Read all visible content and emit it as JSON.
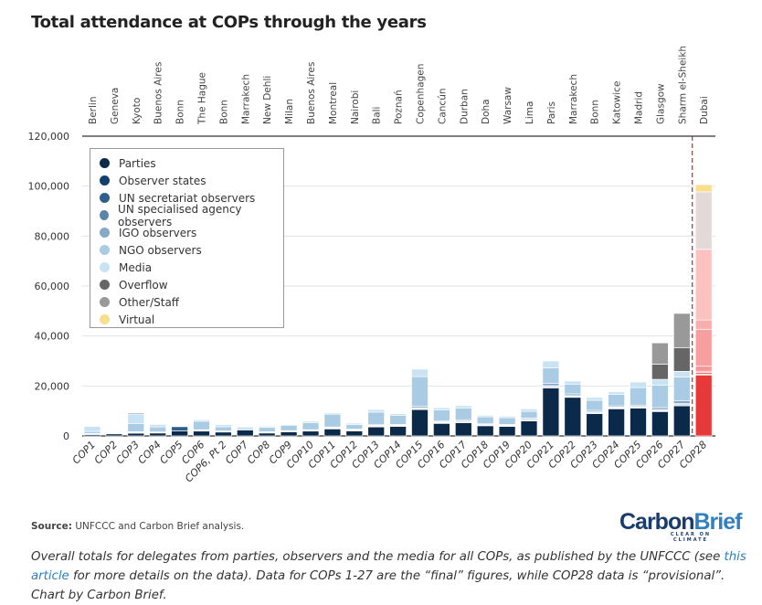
{
  "chart_data": {
    "type": "bar",
    "stacked": true,
    "title": "Total attendance at COPs through the years",
    "xlabel": "",
    "ylabel": "",
    "ylim": [
      0,
      120000
    ],
    "yticks": [
      0,
      20000,
      40000,
      60000,
      80000,
      100000,
      120000
    ],
    "ytick_labels": [
      "0",
      "20,000",
      "40,000",
      "60,000",
      "80,000",
      "100,000",
      "120,000"
    ],
    "grid": true,
    "legend_position": "top-left",
    "categories": [
      "COP1",
      "COP2",
      "COP3",
      "COP4",
      "COP5",
      "COP6",
      "COP6, Pt 2",
      "COP7",
      "COP8",
      "COP9",
      "COP10",
      "COP11",
      "COP12",
      "COP13",
      "COP14",
      "COP15",
      "COP16",
      "COP17",
      "COP18",
      "COP19",
      "COP20",
      "COP21",
      "COP22",
      "COP23",
      "COP24",
      "COP25",
      "COP26",
      "COP27",
      "COP28"
    ],
    "venues": [
      "Berlin",
      "Geneva",
      "Kyoto",
      "Buenos Aires",
      "Bonn",
      "The Hague",
      "Bonn",
      "Marrakech",
      "New Dehli",
      "Milan",
      "Buenos Aires",
      "Montreal",
      "Nairobi",
      "Bali",
      "Poznań",
      "Copenhagen",
      "Cancún",
      "Durban",
      "Doha",
      "Warsaw",
      "Lima",
      "Paris",
      "Marrakech",
      "Bonn",
      "Katowice",
      "Madrid",
      "Glasgow",
      "Sharm el-Sheikh",
      "Dubai"
    ],
    "provisional_category": "COP28",
    "series": [
      {
        "name": "Parties",
        "color": "#0b2a4a",
        "highlight_color": "#e8393a",
        "values": [
          700,
          800,
          1200,
          1300,
          2000,
          2100,
          1700,
          2400,
          1300,
          1800,
          2100,
          2900,
          2100,
          3700,
          3900,
          10600,
          5100,
          5400,
          4150,
          3900,
          6100,
          19200,
          15500,
          9000,
          10900,
          11200,
          9800,
          12100,
          24400
        ]
      },
      {
        "name": "Observer states",
        "color": "#123f6b",
        "highlight_color": "#ee5151",
        "values": [
          50,
          0,
          100,
          50,
          0,
          50,
          50,
          0,
          50,
          50,
          50,
          100,
          100,
          100,
          100,
          150,
          100,
          100,
          100,
          100,
          100,
          200,
          150,
          150,
          150,
          150,
          150,
          150,
          300
        ]
      },
      {
        "name": "UN secretariat observers",
        "color": "#2f5f8f",
        "highlight_color": "#f16b6b",
        "values": [
          100,
          0,
          100,
          100,
          1700,
          100,
          100,
          0,
          100,
          100,
          100,
          200,
          200,
          300,
          200,
          300,
          300,
          300,
          200,
          200,
          300,
          400,
          300,
          300,
          300,
          300,
          300,
          400,
          700
        ]
      },
      {
        "name": "UN specialised agency observers",
        "color": "#5b84ab",
        "highlight_color": "#f38282",
        "values": [
          50,
          0,
          100,
          50,
          0,
          50,
          50,
          0,
          50,
          50,
          50,
          100,
          100,
          150,
          100,
          200,
          150,
          200,
          100,
          100,
          150,
          300,
          200,
          200,
          200,
          200,
          300,
          300,
          500
        ]
      },
      {
        "name": "IGO observers",
        "color": "#86a9c8",
        "highlight_color": "#f59595",
        "values": [
          100,
          0,
          200,
          100,
          0,
          200,
          100,
          0,
          200,
          100,
          200,
          300,
          200,
          400,
          300,
          700,
          300,
          500,
          300,
          300,
          500,
          1000,
          700,
          600,
          500,
          500,
          800,
          1200,
          2000
        ]
      },
      {
        "name": "NGO observers",
        "color": "#a9cbe4",
        "highlight_color": "#f79e9e",
        "values": [
          800,
          0,
          3300,
          2000,
          0,
          3400,
          1700,
          0,
          1700,
          2200,
          2800,
          5100,
          1800,
          4900,
          3700,
          11800,
          4500,
          4600,
          2800,
          2700,
          2700,
          6200,
          3900,
          4000,
          4600,
          7000,
          8900,
          9500,
          14800
        ]
      },
      {
        "name": "Media",
        "color": "#c7e3f4",
        "highlight_color": "#f9adad",
        "values": [
          2000,
          0,
          3800,
          1000,
          0,
          600,
          850,
          1200,
          500,
          300,
          600,
          500,
          600,
          1000,
          600,
          3000,
          850,
          1000,
          600,
          600,
          1000,
          2700,
          1200,
          1200,
          1000,
          2200,
          2400,
          2200,
          3700
        ]
      },
      {
        "name": "Overflow",
        "color": "#666666",
        "highlight_color": "#fcc2c2",
        "values": [
          0,
          0,
          400,
          0,
          0,
          0,
          0,
          0,
          0,
          0,
          0,
          0,
          0,
          0,
          0,
          0,
          0,
          0,
          0,
          0,
          0,
          0,
          0,
          0,
          0,
          0,
          6100,
          9400,
          28300
        ]
      },
      {
        "name": "Other/Staff",
        "color": "#999999",
        "highlight_color": "#e3d9d9",
        "values": [
          0,
          0,
          0,
          0,
          0,
          0,
          0,
          0,
          0,
          0,
          0,
          0,
          0,
          0,
          0,
          0,
          0,
          0,
          0,
          0,
          0,
          0,
          0,
          0,
          0,
          0,
          8500,
          13800,
          23000
        ]
      },
      {
        "name": "Virtual",
        "color": "#f8de8e",
        "highlight_color": "#f8de8e",
        "values": [
          0,
          0,
          0,
          0,
          0,
          0,
          0,
          0,
          0,
          0,
          0,
          0,
          0,
          0,
          0,
          0,
          0,
          0,
          0,
          0,
          0,
          0,
          0,
          0,
          0,
          0,
          0,
          0,
          2900
        ]
      }
    ]
  },
  "footer": {
    "source_label": "Source:",
    "source_text": " UNFCCC and Carbon Brief analysis.",
    "logo_part1": "Carbon",
    "logo_part2": "Brief",
    "logo_tagline": "CLEAR ON CLIMATE",
    "caption_before": "Overall totals for delegates from parties, observers and the media for all COPs, as published by the UNFCCC (see ",
    "caption_link": "this article",
    "caption_after": " for more details on the data). Data for COPs 1-27 are the “final” figures, while COP28 data is “provisional”. Chart by Carbon Brief."
  }
}
